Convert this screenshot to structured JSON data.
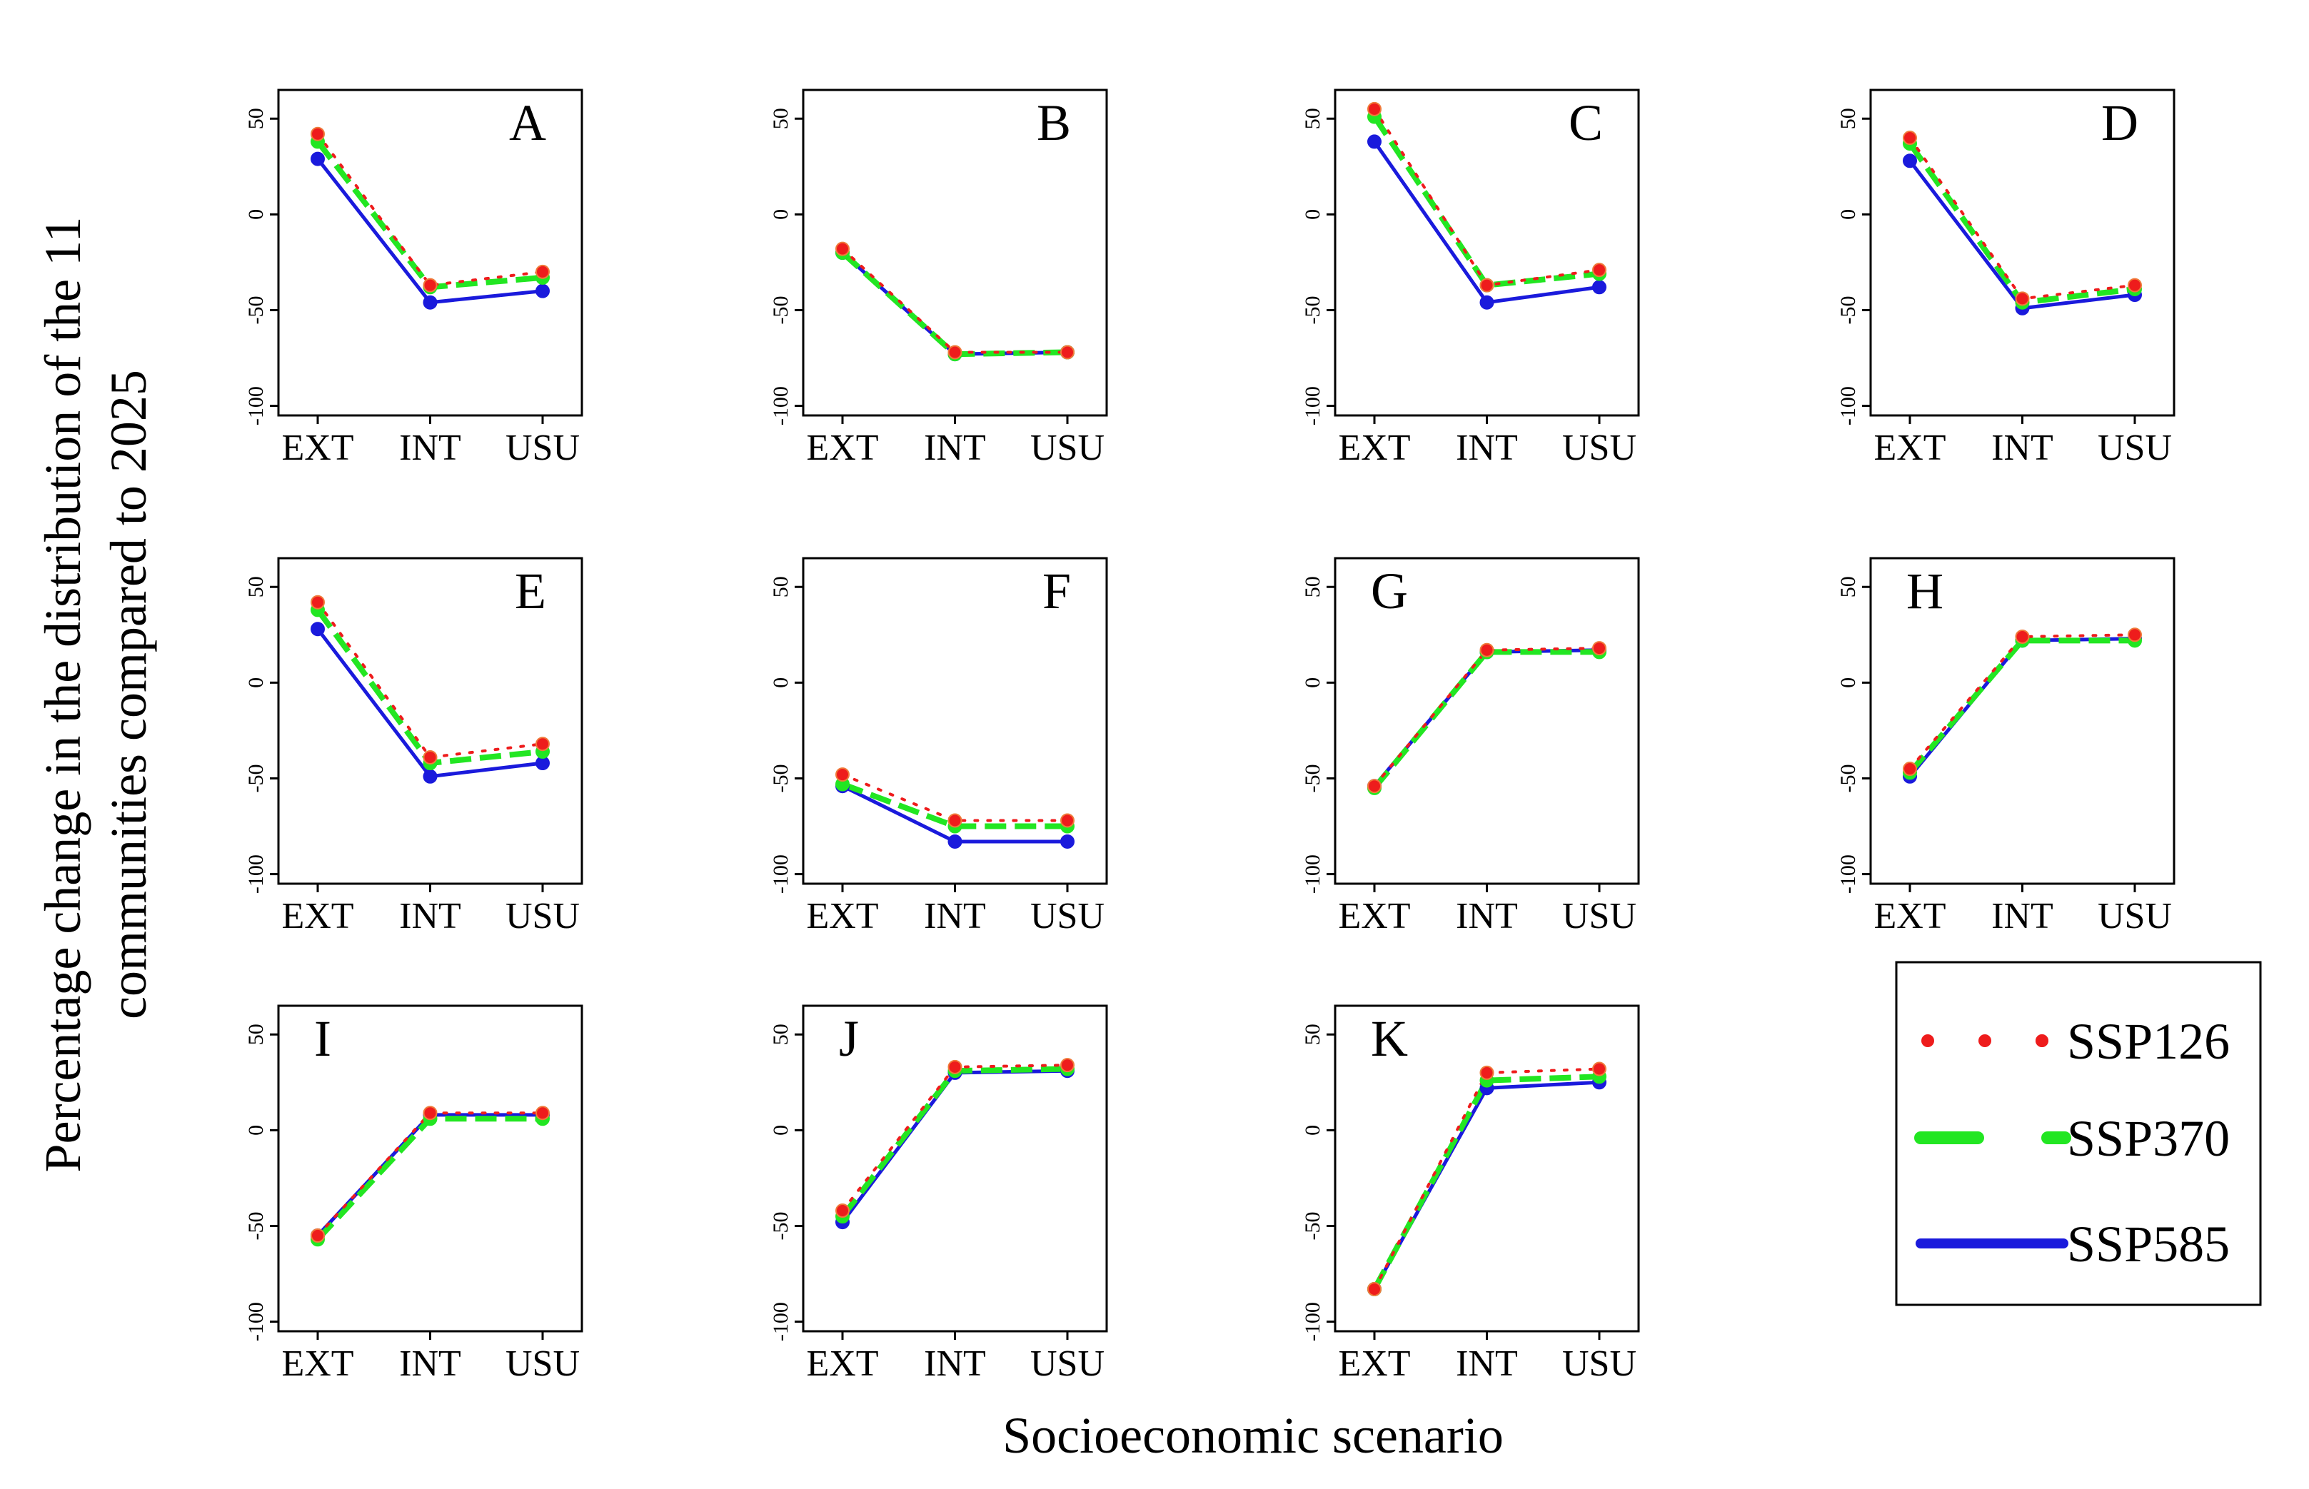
{
  "figure": {
    "ylabel_line1": "Percentage change in the distribution of the 11",
    "ylabel_line2": "communities compared to 2025",
    "xlabel": "Socioeconomic scenario"
  },
  "colors": {
    "SSP126": "#ee1c1c",
    "SSP370": "#22e622",
    "SSP585": "#1a1adc"
  },
  "legend": [
    {
      "name": "SSP126",
      "style": "dotted"
    },
    {
      "name": "SSP370",
      "style": "dashed"
    },
    {
      "name": "SSP585",
      "style": "solid"
    }
  ],
  "chart_data": {
    "type": "line",
    "categories": [
      "EXT",
      "INT",
      "USU"
    ],
    "ylim": [
      -100,
      50
    ],
    "yticks": [
      -100,
      -50,
      0,
      50
    ],
    "grid": false,
    "legend_position": "bottom-right",
    "panels": [
      {
        "label": "A",
        "series": [
          {
            "name": "SSP126",
            "values": [
              42,
              -37,
              -30
            ]
          },
          {
            "name": "SSP370",
            "values": [
              38,
              -38,
              -33
            ]
          },
          {
            "name": "SSP585",
            "values": [
              29,
              -46,
              -40
            ]
          }
        ]
      },
      {
        "label": "B",
        "series": [
          {
            "name": "SSP126",
            "values": [
              -18,
              -72,
              -72
            ]
          },
          {
            "name": "SSP370",
            "values": [
              -20,
              -73,
              -72
            ]
          },
          {
            "name": "SSP585",
            "values": [
              -20,
              -73,
              -72
            ]
          }
        ]
      },
      {
        "label": "C",
        "series": [
          {
            "name": "SSP126",
            "values": [
              55,
              -37,
              -29
            ]
          },
          {
            "name": "SSP370",
            "values": [
              51,
              -37,
              -31
            ]
          },
          {
            "name": "SSP585",
            "values": [
              38,
              -46,
              -38
            ]
          }
        ]
      },
      {
        "label": "D",
        "series": [
          {
            "name": "SSP126",
            "values": [
              40,
              -44,
              -37
            ]
          },
          {
            "name": "SSP370",
            "values": [
              37,
              -46,
              -39
            ]
          },
          {
            "name": "SSP585",
            "values": [
              28,
              -49,
              -42
            ]
          }
        ]
      },
      {
        "label": "E",
        "series": [
          {
            "name": "SSP126",
            "values": [
              42,
              -39,
              -32
            ]
          },
          {
            "name": "SSP370",
            "values": [
              38,
              -42,
              -36
            ]
          },
          {
            "name": "SSP585",
            "values": [
              28,
              -49,
              -42
            ]
          }
        ]
      },
      {
        "label": "F",
        "series": [
          {
            "name": "SSP126",
            "values": [
              -48,
              -72,
              -72
            ]
          },
          {
            "name": "SSP370",
            "values": [
              -53,
              -75,
              -75
            ]
          },
          {
            "name": "SSP585",
            "values": [
              -54,
              -83,
              -83
            ]
          }
        ]
      },
      {
        "label": "G",
        "series": [
          {
            "name": "SSP126",
            "values": [
              -54,
              17,
              18
            ]
          },
          {
            "name": "SSP370",
            "values": [
              -55,
              16,
              16
            ]
          },
          {
            "name": "SSP585",
            "values": [
              -54,
              16,
              17
            ]
          }
        ]
      },
      {
        "label": "H",
        "series": [
          {
            "name": "SSP126",
            "values": [
              -45,
              24,
              25
            ]
          },
          {
            "name": "SSP370",
            "values": [
              -47,
              22,
              22
            ]
          },
          {
            "name": "SSP585",
            "values": [
              -49,
              22,
              23
            ]
          }
        ]
      },
      {
        "label": "I",
        "series": [
          {
            "name": "SSP126",
            "values": [
              -55,
              9,
              9
            ]
          },
          {
            "name": "SSP370",
            "values": [
              -57,
              6,
              6
            ]
          },
          {
            "name": "SSP585",
            "values": [
              -55,
              8,
              8
            ]
          }
        ]
      },
      {
        "label": "J",
        "series": [
          {
            "name": "SSP126",
            "values": [
              -42,
              33,
              34
            ]
          },
          {
            "name": "SSP370",
            "values": [
              -45,
              31,
              32
            ]
          },
          {
            "name": "SSP585",
            "values": [
              -48,
              30,
              31
            ]
          }
        ]
      },
      {
        "label": "K",
        "series": [
          {
            "name": "SSP126",
            "values": [
              -83,
              30,
              32
            ]
          },
          {
            "name": "SSP370",
            "values": [
              -83,
              26,
              28
            ]
          },
          {
            "name": "SSP585",
            "values": [
              -83,
              22,
              25
            ]
          }
        ]
      }
    ]
  }
}
